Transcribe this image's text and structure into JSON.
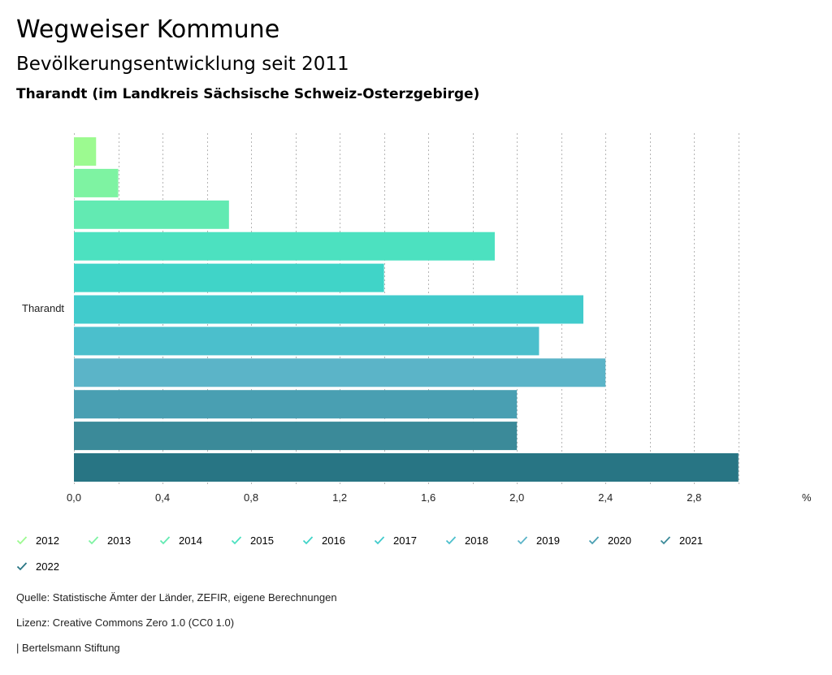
{
  "header": {
    "title": "Wegweiser Kommune",
    "subtitle": "Bevölkerungsentwicklung seit 2011",
    "region": "Tharandt (im Landkreis Sächsische Schweiz-Osterzgebirge)"
  },
  "chart_data": {
    "type": "bar",
    "orientation": "horizontal",
    "categories": [
      "Tharandt"
    ],
    "series": [
      {
        "name": "2012",
        "values": [
          0.1
        ],
        "color": "#9cfa90"
      },
      {
        "name": "2013",
        "values": [
          0.2
        ],
        "color": "#7ef3a2"
      },
      {
        "name": "2014",
        "values": [
          0.7
        ],
        "color": "#62eab2"
      },
      {
        "name": "2015",
        "values": [
          1.9
        ],
        "color": "#4ce1c0"
      },
      {
        "name": "2016",
        "values": [
          1.4
        ],
        "color": "#40d4c8"
      },
      {
        "name": "2017",
        "values": [
          2.3
        ],
        "color": "#41cbcc"
      },
      {
        "name": "2018",
        "values": [
          2.1
        ],
        "color": "#4bbfcc"
      },
      {
        "name": "2019",
        "values": [
          2.4
        ],
        "color": "#5bb4c8"
      },
      {
        "name": "2020",
        "values": [
          2.0
        ],
        "color": "#499fb2"
      },
      {
        "name": "2021",
        "values": [
          2.0
        ],
        "color": "#3b8a99"
      },
      {
        "name": "2022",
        "values": [
          3.0
        ],
        "color": "#287584"
      }
    ],
    "xlim": [
      0,
      3.4
    ],
    "xticks": [
      "0,0",
      "0,4",
      "0,8",
      "1,2",
      "1,6",
      "2,0",
      "2,4",
      "2,8"
    ],
    "xtick_values": [
      0,
      0.4,
      0.8,
      1.2,
      1.6,
      2.0,
      2.4,
      2.8
    ],
    "xunit": "%",
    "grid": true,
    "grid_step": 0.2,
    "legend_position": "bottom-left"
  },
  "footer": {
    "source": "Quelle: Statistische Ämter der Länder, ZEFIR, eigene Berechnungen",
    "license": "Lizenz: Creative Commons Zero 1.0 (CC0 1.0)",
    "publisher": "| Bertelsmann Stiftung"
  }
}
